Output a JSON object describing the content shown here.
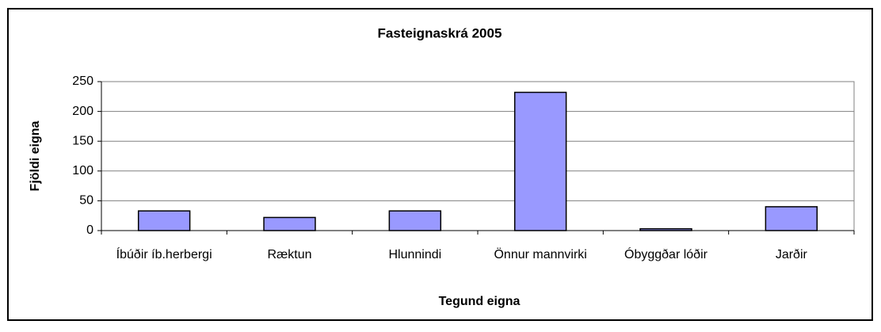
{
  "chart_data": {
    "type": "bar",
    "title": "Fasteignaskrá 2005",
    "x_label": "Tegund eigna",
    "y_label": "Fjöldi eigna",
    "categories": [
      "Íbúðir íb.herbergi",
      "Ræktun",
      "Hlunnindi",
      "Önnur mannvirki",
      "Óbyggðar lóðir",
      "Jarðir"
    ],
    "values": [
      33,
      22,
      33,
      232,
      3,
      40
    ],
    "color": "#9999ff",
    "ylim": [
      0,
      250
    ],
    "yticks": [
      0,
      50,
      100,
      150,
      200,
      250
    ],
    "grid": true
  }
}
